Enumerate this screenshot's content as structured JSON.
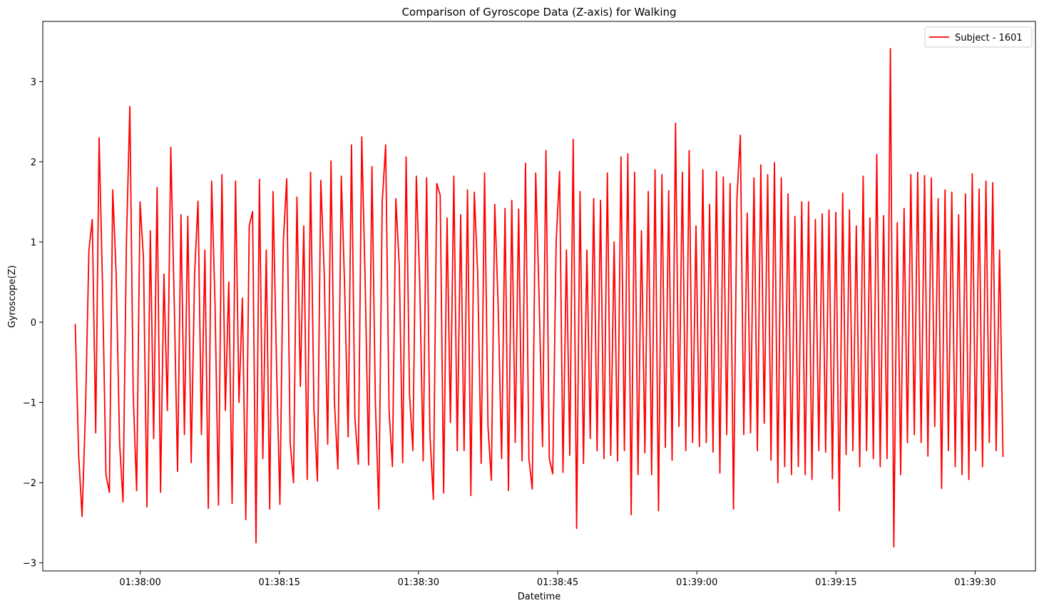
{
  "chart_data": {
    "type": "line",
    "title": "Comparison of Gyroscope Data (Z-axis) for Walking",
    "xlabel": "Datetime",
    "ylabel": "Gyroscope(Z)",
    "x_tick_labels": [
      "01:38:00",
      "01:38:15",
      "01:38:30",
      "01:38:45",
      "01:39:00",
      "01:39:15",
      "01:39:30"
    ],
    "x_range": [
      "01:37:53",
      "01:39:33"
    ],
    "y_ticks": [
      3,
      2,
      1,
      0,
      -1,
      -2,
      -3
    ],
    "y_tick_labels": [
      "3",
      "2",
      "1",
      "0",
      "−1",
      "−2",
      "−3"
    ],
    "ylim": [
      -3.1,
      3.75
    ],
    "grid": false,
    "legend_position": "top-right",
    "series": [
      {
        "name": "Subject - 1601",
        "color": "#ff0000",
        "x_start": "01:37:53",
        "x_end": "01:39:33",
        "values": [
          -0.02,
          -1.65,
          -2.42,
          -1.1,
          0.9,
          1.28,
          -1.38,
          2.3,
          0.45,
          -1.9,
          -2.12,
          1.65,
          0.6,
          -1.5,
          -2.24,
          1.0,
          2.69,
          -0.9,
          -2.1,
          1.5,
          0.8,
          -2.3,
          1.14,
          -1.45,
          1.68,
          -2.12,
          0.6,
          -1.1,
          2.18,
          0.3,
          -1.86,
          1.34,
          -1.4,
          1.32,
          -1.75,
          0.6,
          1.51,
          -1.4,
          0.9,
          -2.32,
          1.76,
          0.2,
          -2.28,
          1.84,
          -1.1,
          0.5,
          -2.26,
          1.76,
          -1.0,
          0.3,
          -2.46,
          1.2,
          1.38,
          -2.75,
          1.78,
          -1.7,
          0.9,
          -2.33,
          1.63,
          -0.5,
          -2.27,
          1.0,
          1.79,
          -1.5,
          -2.0,
          1.56,
          -0.8,
          1.2,
          -1.96,
          1.87,
          -1.1,
          -1.98,
          1.77,
          0.6,
          -1.52,
          2.01,
          -1.0,
          -1.83,
          1.82,
          0.4,
          -1.43,
          2.21,
          -1.2,
          -1.77,
          2.31,
          0.5,
          -1.78,
          1.94,
          -1.0,
          -2.33,
          1.5,
          2.21,
          -1.1,
          -1.8,
          1.54,
          0.7,
          -1.75,
          2.06,
          -0.9,
          -1.6,
          1.82,
          0.5,
          -1.73,
          1.8,
          -1.4,
          -2.21,
          1.73,
          1.58,
          -2.13,
          1.3,
          -1.25,
          1.82,
          -1.6,
          1.34,
          -1.6,
          1.65,
          -2.16,
          1.62,
          0.6,
          -1.76,
          1.86,
          -1.3,
          -1.97,
          1.47,
          0.2,
          -1.7,
          1.42,
          -2.1,
          1.52,
          -1.5,
          1.41,
          -1.73,
          1.98,
          -1.7,
          -2.08,
          1.86,
          0.3,
          -1.55,
          2.14,
          -1.7,
          -1.89,
          1.0,
          1.88,
          -1.87,
          0.9,
          -1.66,
          2.28,
          -2.57,
          1.63,
          -1.76,
          0.9,
          -1.45,
          1.54,
          -1.6,
          1.52,
          -1.7,
          1.86,
          -1.66,
          1.0,
          -1.73,
          2.06,
          -1.6,
          2.1,
          -2.4,
          1.87,
          -1.9,
          1.14,
          -1.63,
          1.63,
          -1.9,
          1.9,
          -2.35,
          1.84,
          -1.56,
          1.64,
          -1.72,
          2.48,
          -1.3,
          1.87,
          -1.6,
          2.14,
          -1.5,
          1.2,
          -1.55,
          1.9,
          -1.5,
          1.47,
          -1.62,
          1.88,
          -1.88,
          1.81,
          -1.4,
          1.73,
          -2.33,
          1.55,
          2.33,
          -1.4,
          1.36,
          -1.38,
          1.8,
          -1.6,
          1.96,
          -1.26,
          1.84,
          -1.72,
          1.99,
          -2.0,
          1.8,
          -1.8,
          1.6,
          -1.9,
          1.32,
          -1.8,
          1.5,
          -1.9,
          1.5,
          -1.96,
          1.28,
          -1.6,
          1.35,
          -1.62,
          1.4,
          -1.95,
          1.37,
          -2.35,
          1.61,
          -1.65,
          1.4,
          -1.6,
          1.2,
          -1.8,
          1.82,
          -1.6,
          1.3,
          -1.7,
          2.09,
          -1.8,
          1.33,
          -1.7,
          3.41,
          -2.8,
          1.24,
          -1.9,
          1.42,
          -1.5,
          1.84,
          -1.4,
          1.87,
          -1.5,
          1.83,
          -1.67,
          1.8,
          -1.3,
          1.54,
          -2.07,
          1.65,
          -1.6,
          1.62,
          -1.8,
          1.34,
          -1.9,
          1.6,
          -1.96,
          1.85,
          -1.6,
          1.66,
          -1.8,
          1.76,
          -1.5,
          1.74,
          -1.6,
          0.9,
          -1.68
        ]
      }
    ]
  }
}
